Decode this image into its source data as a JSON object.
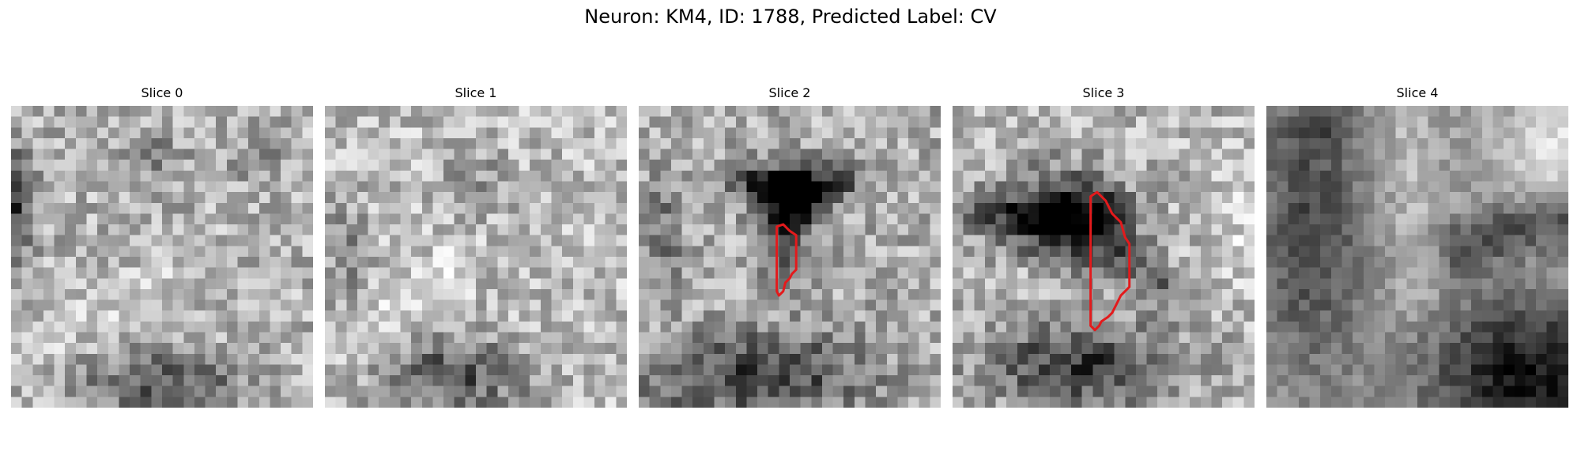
{
  "figure": {
    "title": "Neuron: KM4, ID: 1788, Predicted Label: CV"
  },
  "panels": [
    {
      "label": "Slice 0",
      "contour": false
    },
    {
      "label": "Slice 1",
      "contour": false
    },
    {
      "label": "Slice 2",
      "contour": true
    },
    {
      "label": "Slice 3",
      "contour": true
    },
    {
      "label": "Slice 4",
      "contour": false
    }
  ],
  "colors": {
    "contour": "#e31a1c",
    "colormap": "grayscale"
  }
}
